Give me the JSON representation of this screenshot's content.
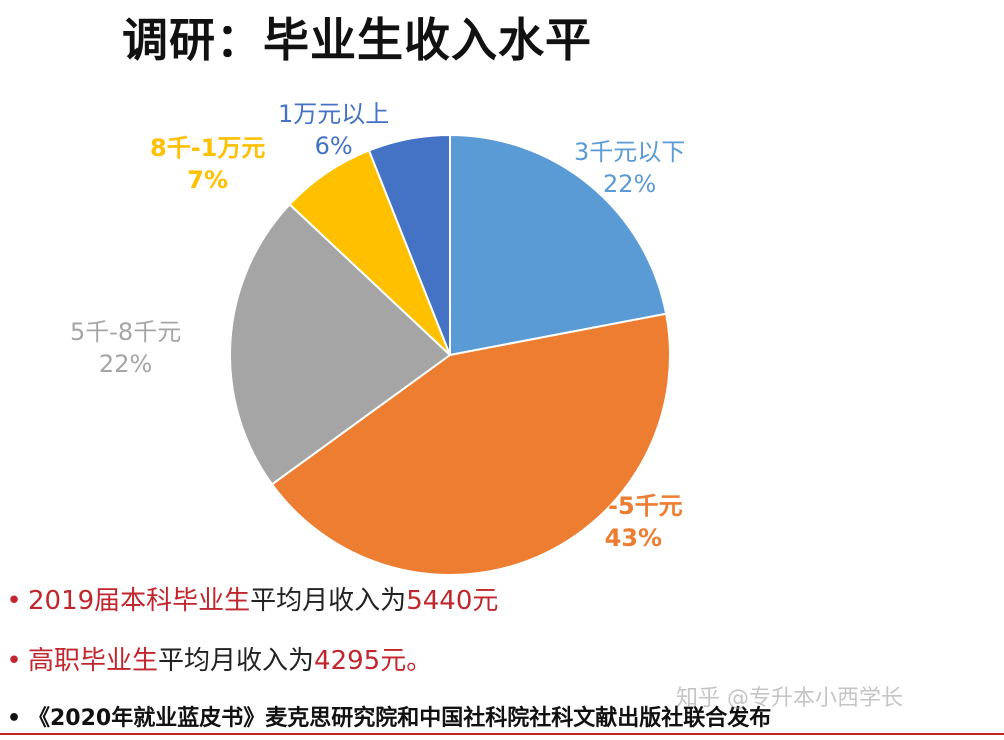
{
  "title": "调研：毕业生收入水平",
  "chart_data": {
    "type": "pie",
    "categories": [
      "3千元以下",
      "3千-5千元",
      "5千-8千元",
      "8千-1万元",
      "1万元以上"
    ],
    "values": [
      22,
      43,
      22,
      7,
      6
    ],
    "labels_shown": [
      {
        "name": "3千元以下",
        "pct": "22%"
      },
      {
        "name": "千-5千元",
        "pct": "43%"
      },
      {
        "name": "5千-8千元",
        "pct": "22%"
      },
      {
        "name": "8千-1万元",
        "pct": "7%"
      },
      {
        "name": "1万元以上",
        "pct": "6%"
      }
    ],
    "colors": [
      "#5b9bd5",
      "#ed7d31",
      "#a5a5a5",
      "#ffc000",
      "#4472c4"
    ],
    "start": "12 o'clock, clockwise"
  },
  "bullets": {
    "b1": {
      "dot": "•",
      "highlight": "2019届本科毕业生",
      "text": "平均月收入为",
      "amount": "5440元"
    },
    "b2": {
      "dot": "•",
      "highlight": "高职毕业生",
      "text": "平均月收入为",
      "amount": "4295元。"
    },
    "b3": {
      "dot": "•",
      "text": "《2020年就业蓝皮书》麦克思研究院和中国社科院社科文献出版社联合发布"
    }
  },
  "watermark": "知乎 @专升本小西学长"
}
